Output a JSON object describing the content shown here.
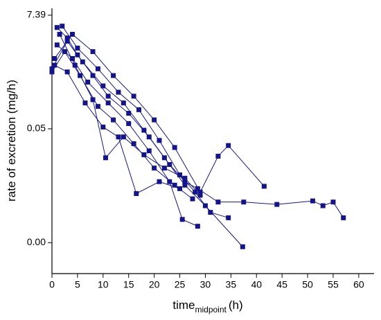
{
  "chart_data": {
    "type": "line",
    "y_label": "rate of excretion (mg/h)",
    "x_label": "time",
    "x_label_subscript": "midpoint",
    "x_label_unit": "(h)",
    "xlim": [
      0,
      63
    ],
    "xticks": [
      0,
      5,
      10,
      15,
      20,
      25,
      30,
      35,
      40,
      45,
      50,
      55,
      60
    ],
    "ylim": [
      8.6e-05,
      10
    ],
    "yscale": "log",
    "yticks": [
      {
        "value": 0.000335,
        "label": "0.00"
      },
      0.05,
      7.39
    ],
    "grid": false,
    "series": [
      {
        "color": "#15158a",
        "x": [
          1,
          3,
          5,
          8,
          11,
          15,
          19,
          23,
          26,
          28.5,
          32.5,
          37.5,
          44,
          51,
          53,
          55,
          57
        ],
        "values": [
          4.3,
          2.72,
          1.29,
          0.52,
          0.21,
          0.099,
          0.035,
          0.0104,
          0.0049,
          0.0036,
          0.002,
          0.002,
          0.0018,
          0.0021,
          0.0017,
          0.002,
          0.001
        ]
      },
      {
        "color": "#15158a",
        "x": [
          0.5,
          4,
          8,
          12,
          16,
          20,
          24,
          29,
          32.5,
          34.5,
          41.5
        ],
        "values": [
          1.1,
          3.19,
          1.49,
          0.52,
          0.21,
          0.074,
          0.022,
          0.0031,
          0.015,
          0.024,
          0.004
        ]
      },
      {
        "color": "#15158a",
        "x": [
          0,
          3,
          6,
          10,
          14,
          18,
          22,
          26,
          30,
          37.3
        ],
        "values": [
          0.7,
          2.36,
          0.95,
          0.33,
          0.156,
          0.047,
          0.014,
          0.0042,
          0.0017,
          0.00028
        ]
      },
      {
        "color": "#15158a",
        "x": [
          2,
          5,
          9,
          13,
          17,
          21,
          25,
          28,
          31,
          34.5
        ],
        "values": [
          4.57,
          1.74,
          0.7,
          0.25,
          0.116,
          0.03,
          0.0066,
          0.0031,
          0.00127,
          0.001
        ]
      },
      {
        "color": "#15158a",
        "x": [
          1,
          4,
          7,
          11,
          15,
          19,
          23,
          25.5,
          28.5
        ],
        "values": [
          2.0,
          1.1,
          0.39,
          0.156,
          0.063,
          0.019,
          0.0049,
          0.00093,
          0.00069
        ]
      },
      {
        "color": "#15158a",
        "x": [
          0.5,
          3,
          6.5,
          10,
          13,
          16.5,
          21,
          25
        ],
        "values": [
          0.82,
          0.61,
          0.156,
          0.054,
          0.035,
          0.0029,
          0.0049,
          0.0036
        ]
      },
      {
        "color": "#15158a",
        "x": [
          1.5,
          4.5,
          8,
          10.5,
          14,
          18,
          22,
          26,
          29
        ],
        "values": [
          3.19,
          0.82,
          0.18,
          0.014,
          0.035,
          0.016,
          0.0089,
          0.0057,
          0.0027
        ]
      },
      {
        "color": "#15158a",
        "x": [
          0,
          2.5,
          5.5,
          9,
          12,
          16,
          20,
          24,
          27.5
        ],
        "values": [
          0.61,
          1.49,
          0.52,
          0.134,
          0.074,
          0.026,
          0.0089,
          0.0042,
          0.0023
        ]
      }
    ]
  }
}
